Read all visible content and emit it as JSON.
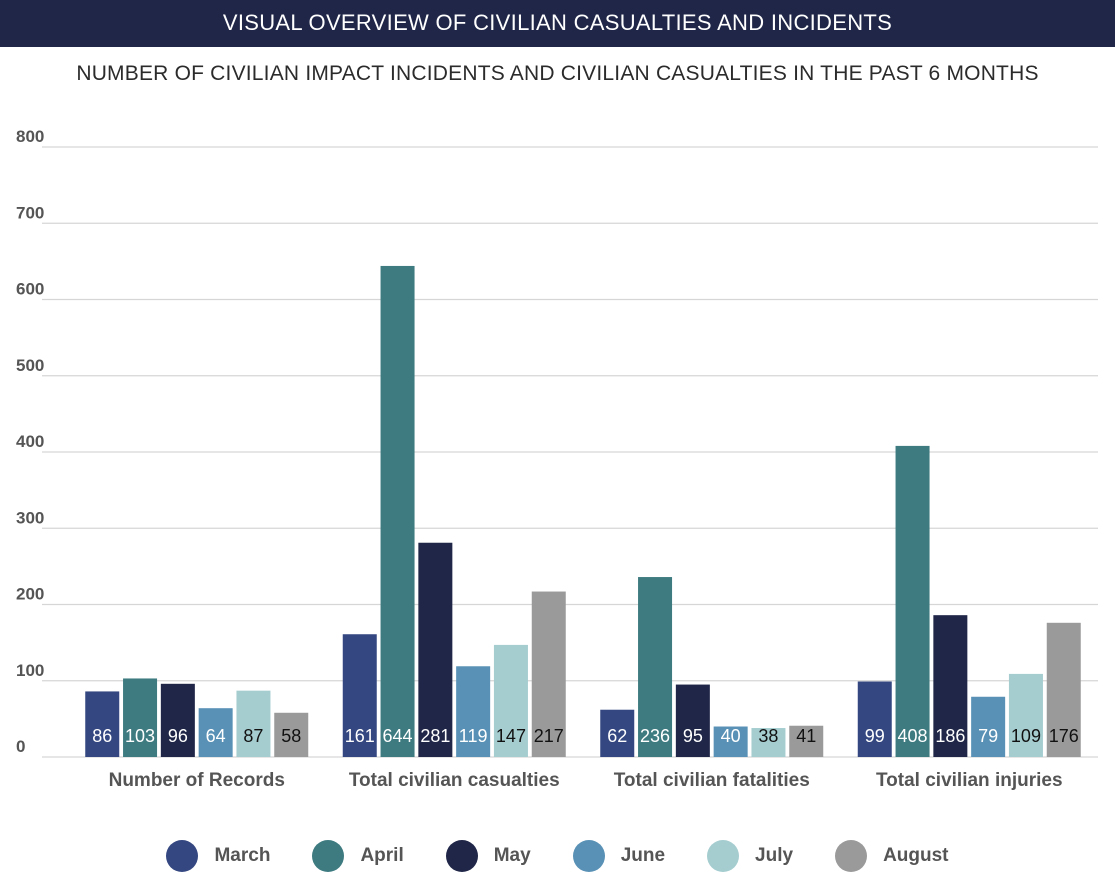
{
  "header": {
    "banner_title": "VISUAL OVERVIEW OF CIVILIAN CASUALTIES AND INCIDENTS"
  },
  "chart_data": {
    "type": "bar",
    "title": "NUMBER OF CIVILIAN IMPACT INCIDENTS AND CIVILIAN CASUALTIES IN THE PAST 6 MONTHS",
    "categories": [
      "Number of Records",
      "Total civilian casualties",
      "Total civilian fatalities",
      "Total civilian injuries"
    ],
    "series": [
      {
        "name": "March",
        "color": "#344781",
        "values": [
          86,
          161,
          62,
          99
        ]
      },
      {
        "name": "April",
        "color": "#3d7b80",
        "values": [
          103,
          644,
          236,
          408
        ]
      },
      {
        "name": "May",
        "color": "#1f2647",
        "values": [
          96,
          281,
          95,
          186
        ]
      },
      {
        "name": "June",
        "color": "#5891b5",
        "values": [
          64,
          119,
          40,
          79
        ]
      },
      {
        "name": "July",
        "color": "#a5cdd0",
        "values": [
          87,
          147,
          38,
          109
        ]
      },
      {
        "name": "August",
        "color": "#9a9a9a",
        "values": [
          58,
          217,
          41,
          176
        ]
      }
    ],
    "yticks": [
      0,
      100,
      200,
      300,
      400,
      500,
      600,
      700,
      800
    ],
    "ylim": [
      0,
      800
    ],
    "grid": true,
    "legend_position": "bottom",
    "data_labels": true
  }
}
